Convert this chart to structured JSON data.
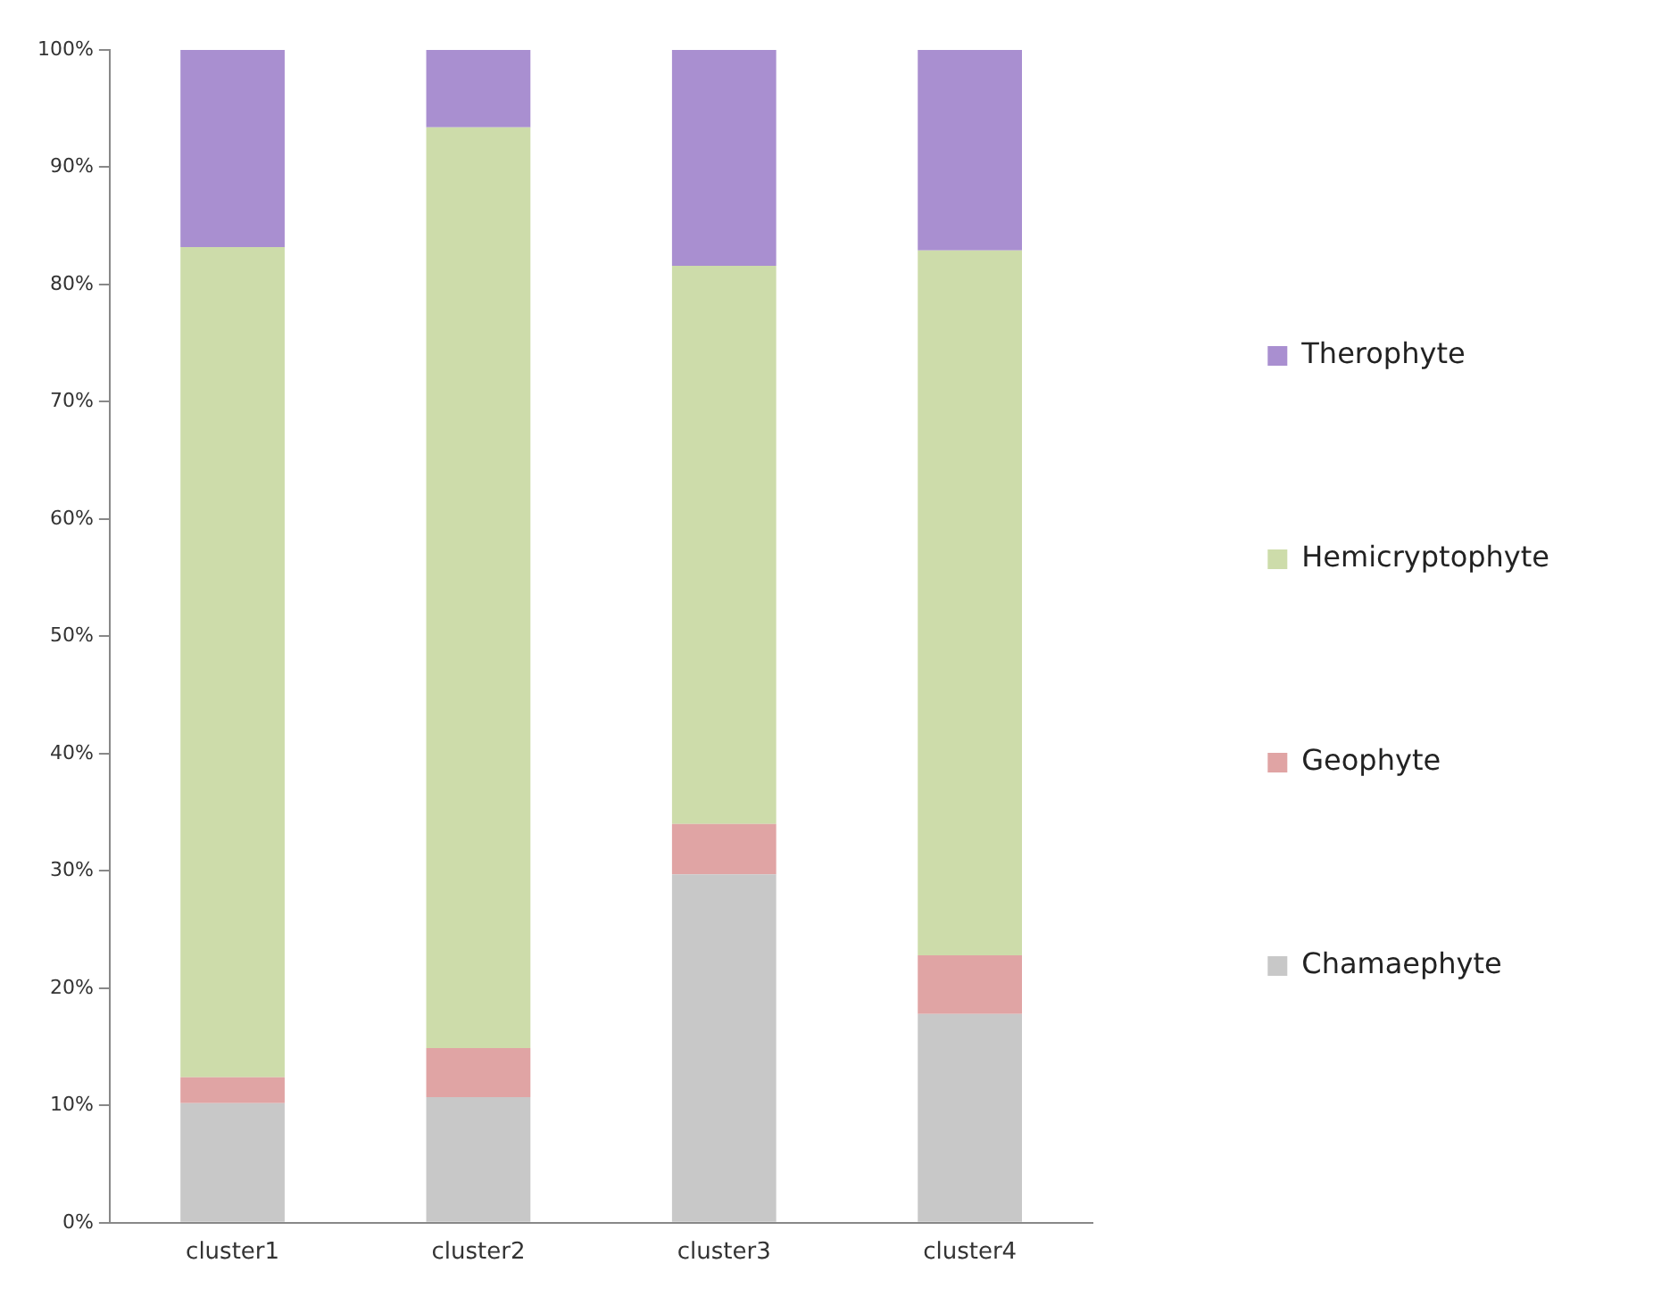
{
  "chart_data": {
    "type": "bar",
    "stacked": true,
    "categories": [
      "cluster1",
      "cluster2",
      "cluster3",
      "cluster4"
    ],
    "series": [
      {
        "name": "Chamaephyte",
        "color": "#c8c8c8",
        "values": [
          10.2,
          10.7,
          29.7,
          17.8
        ]
      },
      {
        "name": "Geophyte",
        "color": "#e0a4a4",
        "values": [
          2.2,
          4.2,
          4.3,
          5.0
        ]
      },
      {
        "name": "Hemicryptophyte",
        "color": "#cddcaa",
        "values": [
          70.8,
          78.5,
          47.6,
          60.1
        ]
      },
      {
        "name": "Therophyte",
        "color": "#a98fd0",
        "values": [
          16.8,
          6.6,
          18.4,
          17.1
        ]
      }
    ],
    "ylim": [
      0,
      100
    ],
    "yticks": [
      {
        "value": 0,
        "label": "0%"
      },
      {
        "value": 10,
        "label": "10%"
      },
      {
        "value": 20,
        "label": "20%"
      },
      {
        "value": 30,
        "label": "30%"
      },
      {
        "value": 40,
        "label": "40%"
      },
      {
        "value": 50,
        "label": "50%"
      },
      {
        "value": 60,
        "label": "60%"
      },
      {
        "value": 70,
        "label": "70%"
      },
      {
        "value": 80,
        "label": "80%"
      },
      {
        "value": 90,
        "label": "90%"
      },
      {
        "value": 100,
        "label": "100%"
      }
    ],
    "grid": false,
    "legend": "right"
  }
}
